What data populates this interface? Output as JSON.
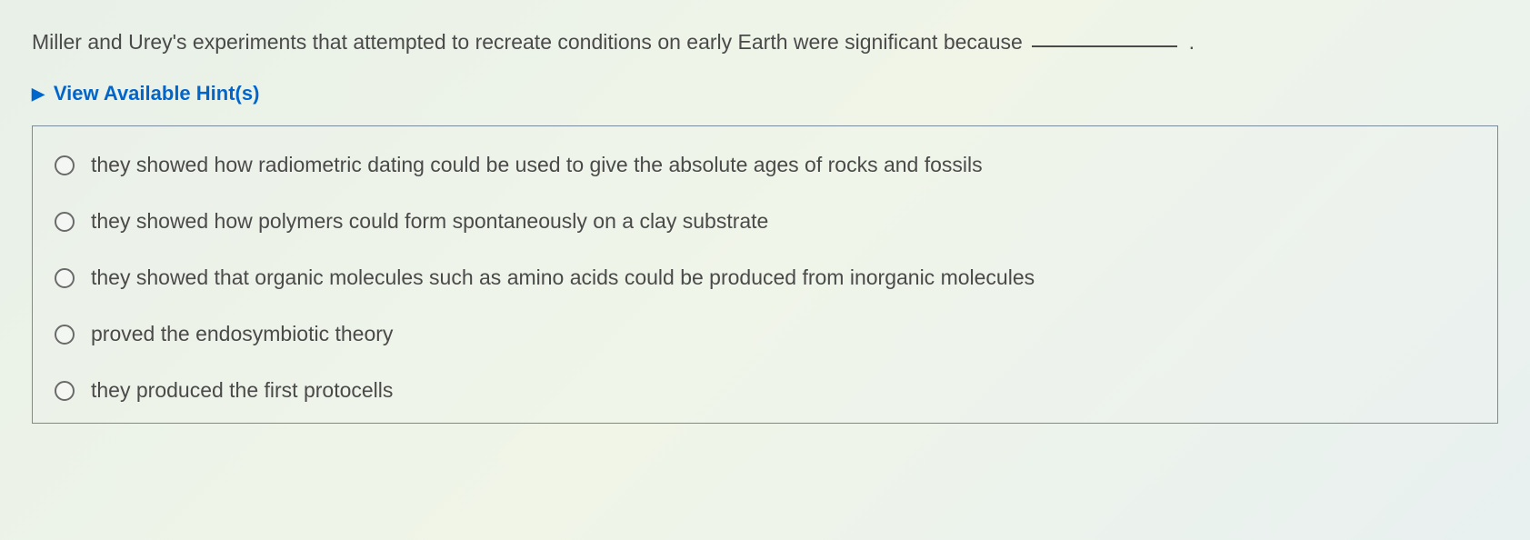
{
  "question": {
    "text": "Miller and Urey's experiments that attempted to recreate conditions on early Earth were significant because",
    "trailing_punctuation": "."
  },
  "hint": {
    "label": "View Available Hint(s)"
  },
  "options": [
    {
      "label": "they showed how radiometric dating could be used to give the absolute ages of rocks and fossils"
    },
    {
      "label": "they showed how polymers could form spontaneously on a clay substrate"
    },
    {
      "label": "they showed that organic molecules such as amino acids could be produced from inorganic molecules"
    },
    {
      "label": "proved the endosymbiotic theory"
    },
    {
      "label": "they produced the first protocells"
    }
  ],
  "colors": {
    "text": "#4a4a4a",
    "link": "#0066cc",
    "border": "#7a8a9a",
    "radio_border": "#6a6a6a"
  }
}
